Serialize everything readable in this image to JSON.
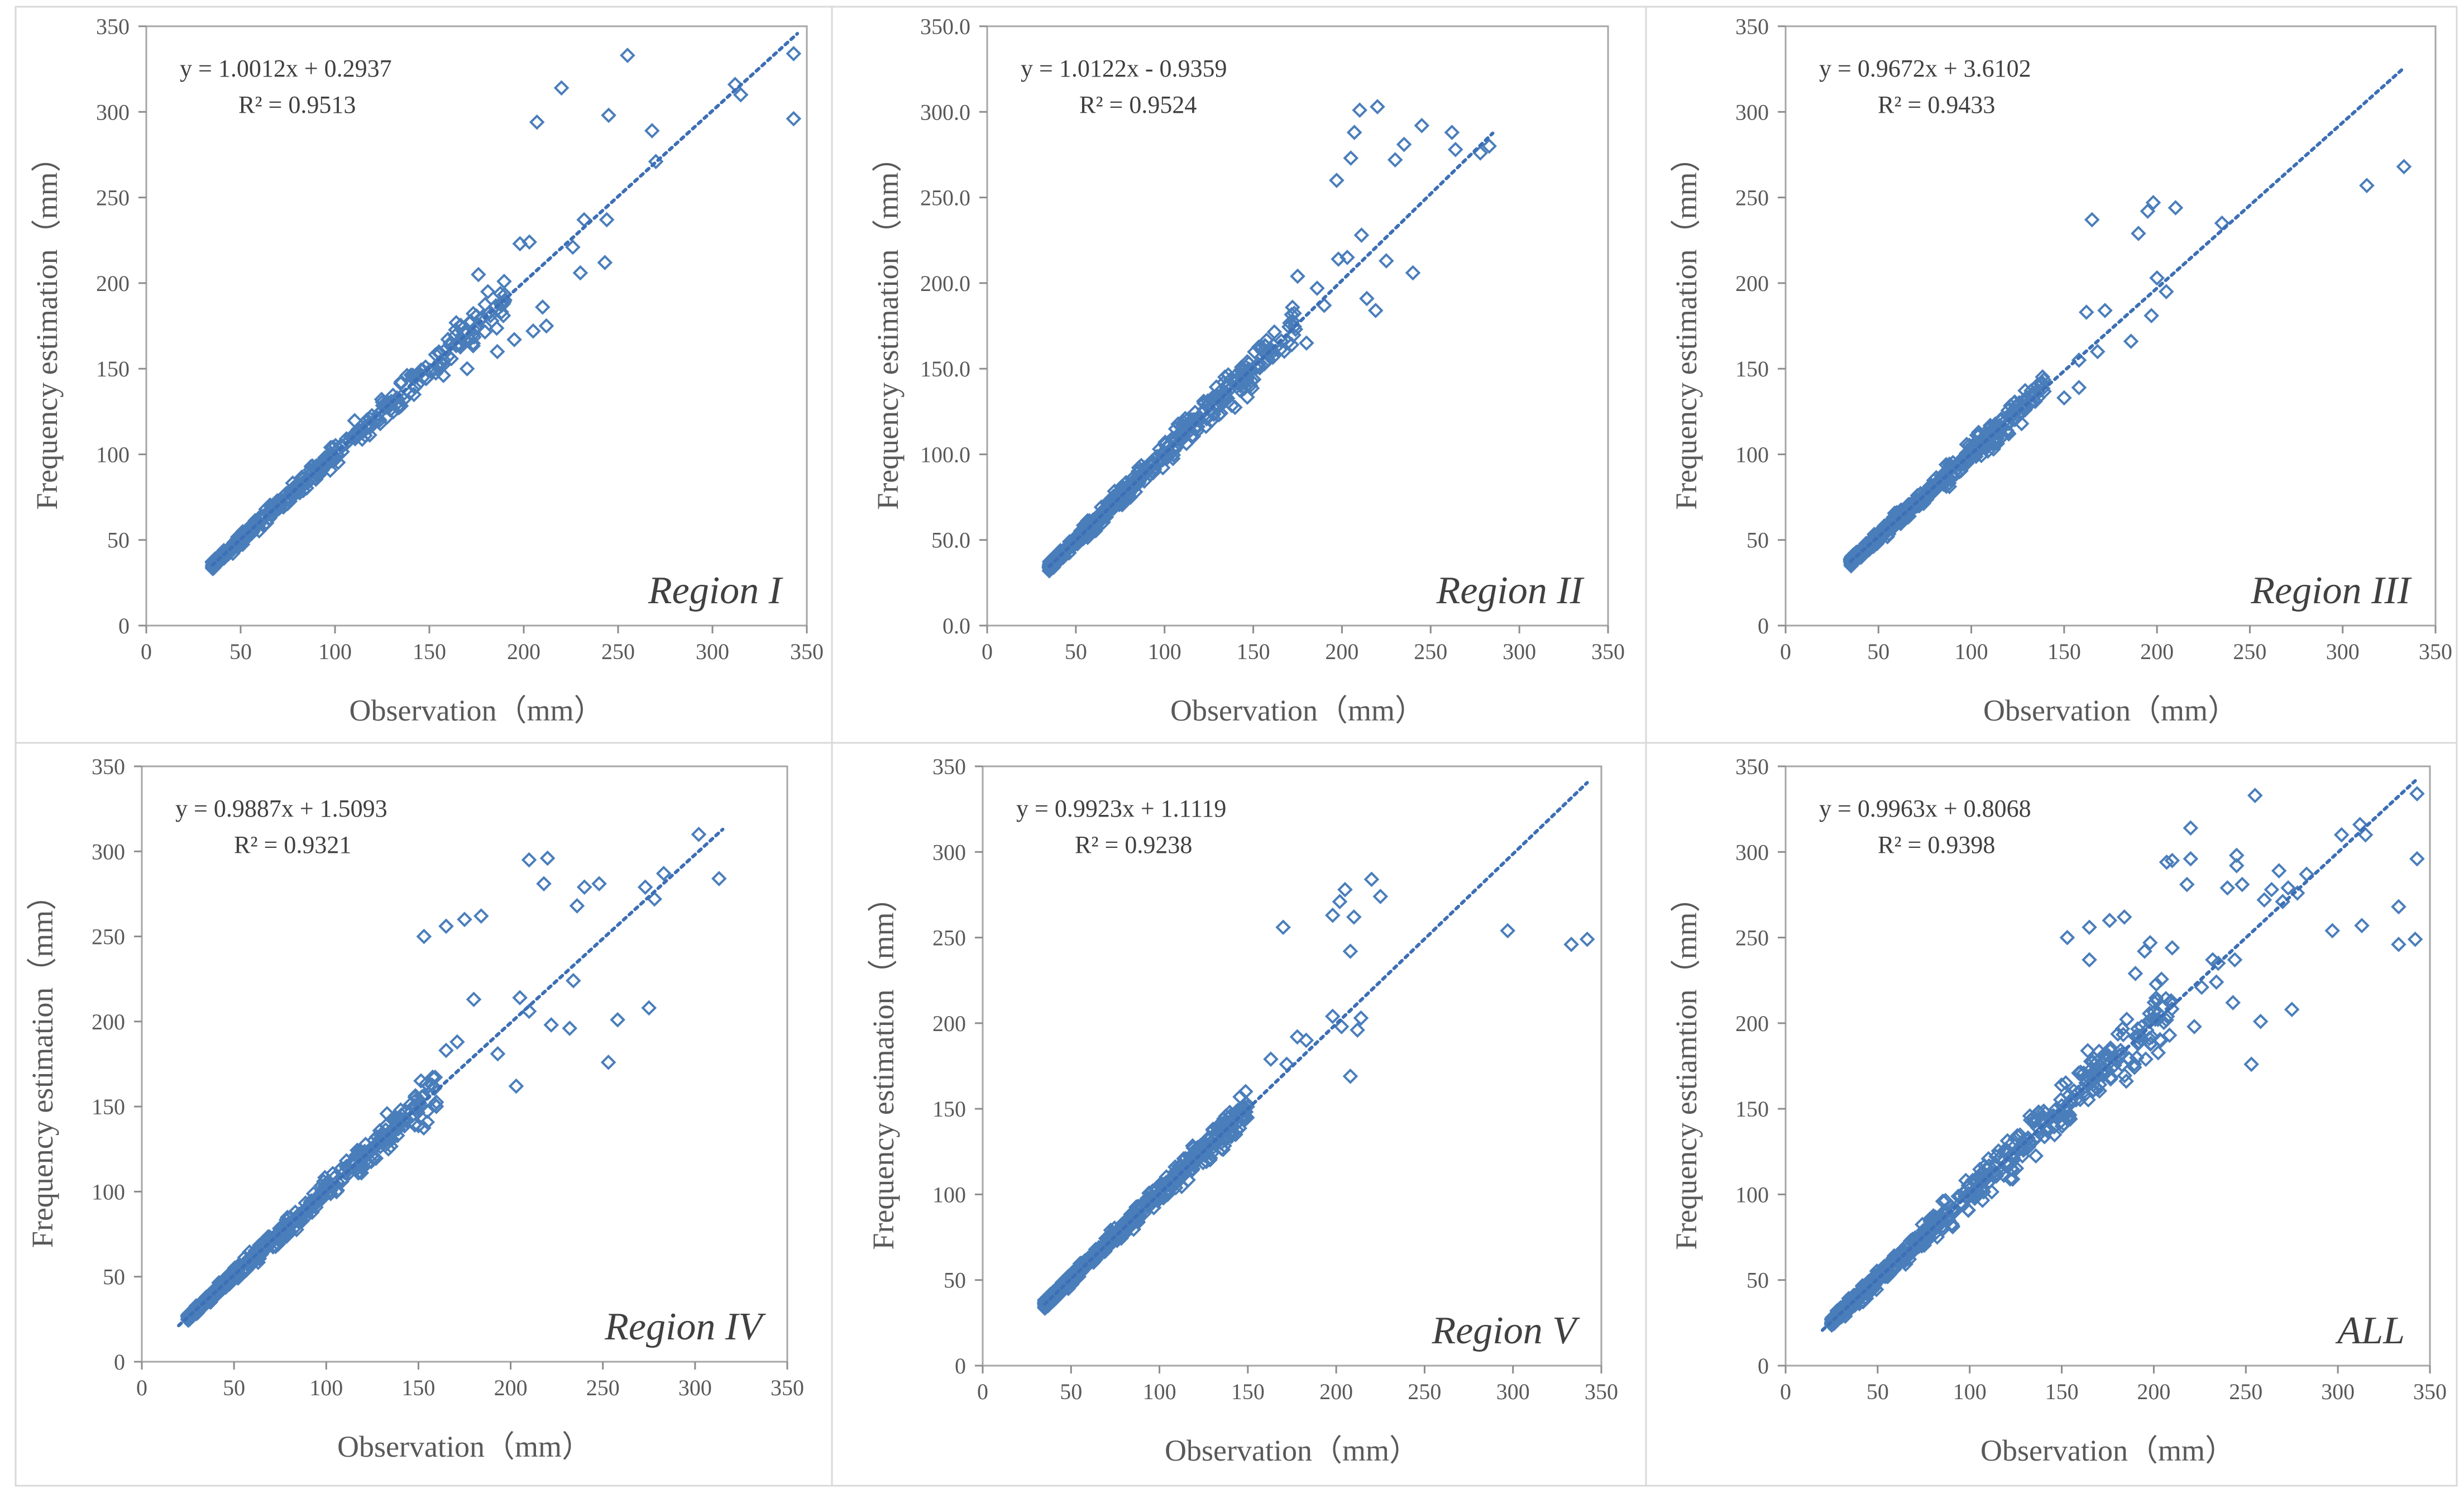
{
  "figure": {
    "marker_color": "#4A7EBB",
    "trend_color": "#3C6FB5",
    "frame_color": "#a6a6a6",
    "axis_color": "#8c8c8c",
    "text_color": "#595959"
  },
  "chart_data": [
    {
      "type": "scatter",
      "region_label": "Region I",
      "equation": "y = 1.0012x  + 0.2937",
      "r2": "R² = 0.9513",
      "xlabel": "Observation（mm）",
      "ylabel": "Frequency estimation（mm）",
      "xlim": [
        0,
        350
      ],
      "ylim": [
        0,
        350
      ],
      "xticks": [
        "0",
        "50",
        "100",
        "150",
        "200",
        "250",
        "300",
        "350"
      ],
      "yticks": [
        "0",
        "50",
        "100",
        "150",
        "200",
        "250",
        "300",
        "350"
      ],
      "fit": {
        "slope": 1.0012,
        "intercept": 0.2937,
        "x_range": [
          35,
          345
        ]
      },
      "scatter_range": [
        35,
        190
      ],
      "spread": 0.06,
      "outliers": [
        [
          207,
          294
        ],
        [
          220,
          314
        ],
        [
          245,
          298
        ],
        [
          255,
          333
        ],
        [
          268,
          289
        ],
        [
          270,
          271
        ],
        [
          312,
          316
        ],
        [
          315,
          310
        ],
        [
          343,
          334
        ],
        [
          343,
          296
        ],
        [
          232,
          237
        ],
        [
          244,
          237
        ],
        [
          243,
          212
        ],
        [
          226,
          221
        ],
        [
          230,
          206
        ],
        [
          212,
          175
        ],
        [
          198,
          223
        ],
        [
          203,
          224
        ],
        [
          210,
          186
        ],
        [
          205,
          172
        ],
        [
          195,
          167
        ],
        [
          186,
          160
        ],
        [
          176,
          205
        ],
        [
          181,
          195
        ],
        [
          166,
          164
        ],
        [
          170,
          150
        ]
      ]
    },
    {
      "type": "scatter",
      "region_label": "Region II",
      "equation": "y = 1.0122x  - 0.9359",
      "r2": "R² = 0.9524",
      "xlabel": "Observation（mm）",
      "ylabel": "Frequency estimation（mm）",
      "xlim": [
        0,
        350
      ],
      "ylim": [
        0,
        350
      ],
      "xticks": [
        "0",
        "50",
        "100",
        "150",
        "200",
        "250",
        "300",
        "350"
      ],
      "yticks": [
        "0.0",
        "50.0",
        "100.0",
        "150.0",
        "200.0",
        "250.0",
        "300.0",
        "350.0"
      ],
      "fit": {
        "slope": 1.0122,
        "intercept": -0.9359,
        "x_range": [
          35,
          285
        ]
      },
      "scatter_range": [
        35,
        175
      ],
      "spread": 0.07,
      "outliers": [
        [
          210,
          301
        ],
        [
          207,
          288
        ],
        [
          220,
          303
        ],
        [
          230,
          272
        ],
        [
          245,
          292
        ],
        [
          262,
          288
        ],
        [
          264,
          278
        ],
        [
          278,
          276
        ],
        [
          283,
          280
        ],
        [
          235,
          281
        ],
        [
          240,
          206
        ],
        [
          225,
          213
        ],
        [
          205,
          273
        ],
        [
          197,
          260
        ],
        [
          190,
          187
        ],
        [
          198,
          214
        ],
        [
          203,
          215
        ],
        [
          180,
          165
        ],
        [
          175,
          204
        ],
        [
          186,
          197
        ],
        [
          211,
          228
        ],
        [
          214,
          191
        ],
        [
          219,
          184
        ]
      ]
    },
    {
      "type": "scatter",
      "region_label": "Region III",
      "equation": "y = 0.9672x  + 3.6102",
      "r2": "R² = 0.9433",
      "xlabel": "Observation（mm）",
      "ylabel": "Frequency estimation（mm）",
      "xlim": [
        0,
        350
      ],
      "ylim": [
        0,
        350
      ],
      "xticks": [
        "0",
        "50",
        "100",
        "150",
        "200",
        "250",
        "300",
        "350"
      ],
      "yticks": [
        "0",
        "50",
        "100",
        "150",
        "200",
        "250",
        "300",
        "350"
      ],
      "fit": {
        "slope": 0.9672,
        "intercept": 3.6102,
        "x_range": [
          35,
          333
        ]
      },
      "scatter_range": [
        35,
        140
      ],
      "spread": 0.06,
      "outliers": [
        [
          165,
          237
        ],
        [
          190,
          229
        ],
        [
          195,
          242
        ],
        [
          198,
          247
        ],
        [
          210,
          244
        ],
        [
          235,
          235
        ],
        [
          200,
          203
        ],
        [
          205,
          195
        ],
        [
          197,
          181
        ],
        [
          186,
          166
        ],
        [
          168,
          160
        ],
        [
          158,
          155
        ],
        [
          162,
          183
        ],
        [
          172,
          184
        ],
        [
          158,
          139
        ],
        [
          313,
          257
        ],
        [
          333,
          268
        ],
        [
          150,
          133
        ]
      ]
    },
    {
      "type": "scatter",
      "region_label": "Region IV",
      "equation": "y = 0.9887x  + 1.5093",
      "r2": "R² = 0.9321",
      "xlabel": "Observation（mm）",
      "ylabel": "Frequency estimation（mm）",
      "xlim": [
        0,
        350
      ],
      "ylim": [
        0,
        350
      ],
      "xticks": [
        "0",
        "50",
        "100",
        "150",
        "200",
        "250",
        "300",
        "350"
      ],
      "yticks": [
        "0",
        "50",
        "100",
        "150",
        "200",
        "250",
        "300",
        "350"
      ],
      "fit": {
        "slope": 0.9887,
        "intercept": 1.5093,
        "x_range": [
          20,
          315
        ]
      },
      "scatter_range": [
        25,
        160
      ],
      "spread": 0.07,
      "outliers": [
        [
          153,
          250
        ],
        [
          165,
          256
        ],
        [
          175,
          260
        ],
        [
          184,
          262
        ],
        [
          210,
          295
        ],
        [
          220,
          296
        ],
        [
          218,
          281
        ],
        [
          240,
          279
        ],
        [
          248,
          281
        ],
        [
          236,
          268
        ],
        [
          234,
          224
        ],
        [
          222,
          198
        ],
        [
          232,
          196
        ],
        [
          253,
          176
        ],
        [
          258,
          201
        ],
        [
          275,
          208
        ],
        [
          273,
          279
        ],
        [
          278,
          272
        ],
        [
          283,
          287
        ],
        [
          302,
          310
        ],
        [
          313,
          284
        ],
        [
          205,
          214
        ],
        [
          210,
          206
        ],
        [
          203,
          162
        ],
        [
          180,
          213
        ],
        [
          193,
          181
        ],
        [
          165,
          183
        ],
        [
          171,
          188
        ]
      ]
    },
    {
      "type": "scatter",
      "region_label": "Region V",
      "equation": "y = 0.9923x  + 1.1119",
      "r2": "R² = 0.9238",
      "xlabel": "Observation（mm）",
      "ylabel": "Frequency estimation（mm）",
      "xlim": [
        0,
        350
      ],
      "ylim": [
        0,
        350
      ],
      "xticks": [
        "0",
        "50",
        "100",
        "150",
        "200",
        "250",
        "300",
        "350"
      ],
      "yticks": [
        "0",
        "50",
        "100",
        "150",
        "200",
        "250",
        "300",
        "350"
      ],
      "fit": {
        "slope": 0.9923,
        "intercept": 1.1119,
        "x_range": [
          35,
          342
        ]
      },
      "scatter_range": [
        35,
        150
      ],
      "spread": 0.06,
      "outliers": [
        [
          170,
          256
        ],
        [
          198,
          263
        ],
        [
          202,
          271
        ],
        [
          205,
          278
        ],
        [
          210,
          262
        ],
        [
          220,
          284
        ],
        [
          225,
          274
        ],
        [
          297,
          254
        ],
        [
          333,
          246
        ],
        [
          342,
          249
        ],
        [
          198,
          204
        ],
        [
          203,
          198
        ],
        [
          214,
          203
        ],
        [
          212,
          196
        ],
        [
          208,
          169
        ],
        [
          208,
          242
        ],
        [
          183,
          190
        ],
        [
          172,
          176
        ],
        [
          163,
          179
        ],
        [
          178,
          192
        ]
      ]
    },
    {
      "type": "scatter",
      "region_label": "ALL",
      "equation": "y = 0.9963x  + 0.8068",
      "r2": "R² = 0.9398",
      "xlabel": "Observation（mm）",
      "ylabel": "Frequency estiamtion（mm）",
      "xlim": [
        0,
        350
      ],
      "ylim": [
        0,
        350
      ],
      "xticks": [
        "0",
        "50",
        "100",
        "150",
        "200",
        "250",
        "300",
        "350"
      ],
      "yticks": [
        "0",
        "50",
        "100",
        "150",
        "200",
        "250",
        "300",
        "350"
      ],
      "fit": {
        "slope": 0.9963,
        "intercept": 0.8068,
        "x_range": [
          20,
          342
        ]
      },
      "scatter_range": [
        25,
        210
      ],
      "spread": 0.09,
      "outliers": [
        [
          153,
          250
        ],
        [
          165,
          256
        ],
        [
          176,
          260
        ],
        [
          184,
          262
        ],
        [
          207,
          294
        ],
        [
          210,
          295
        ],
        [
          220,
          314
        ],
        [
          220,
          296
        ],
        [
          218,
          281
        ],
        [
          240,
          279
        ],
        [
          245,
          298
        ],
        [
          248,
          281
        ],
        [
          255,
          333
        ],
        [
          268,
          289
        ],
        [
          270,
          271
        ],
        [
          273,
          279
        ],
        [
          283,
          287
        ],
        [
          302,
          310
        ],
        [
          312,
          316
        ],
        [
          315,
          310
        ],
        [
          343,
          334
        ],
        [
          343,
          296
        ],
        [
          333,
          268
        ],
        [
          313,
          257
        ],
        [
          297,
          254
        ],
        [
          333,
          246
        ],
        [
          342,
          249
        ],
        [
          232,
          237
        ],
        [
          244,
          237
        ],
        [
          243,
          212
        ],
        [
          226,
          221
        ],
        [
          253,
          176
        ],
        [
          258,
          201
        ],
        [
          275,
          208
        ],
        [
          235,
          235
        ],
        [
          210,
          244
        ],
        [
          198,
          247
        ],
        [
          195,
          242
        ],
        [
          190,
          229
        ],
        [
          165,
          237
        ],
        [
          234,
          224
        ],
        [
          222,
          198
        ],
        [
          260,
          272
        ],
        [
          264,
          278
        ],
        [
          278,
          276
        ],
        [
          245,
          292
        ]
      ]
    }
  ]
}
